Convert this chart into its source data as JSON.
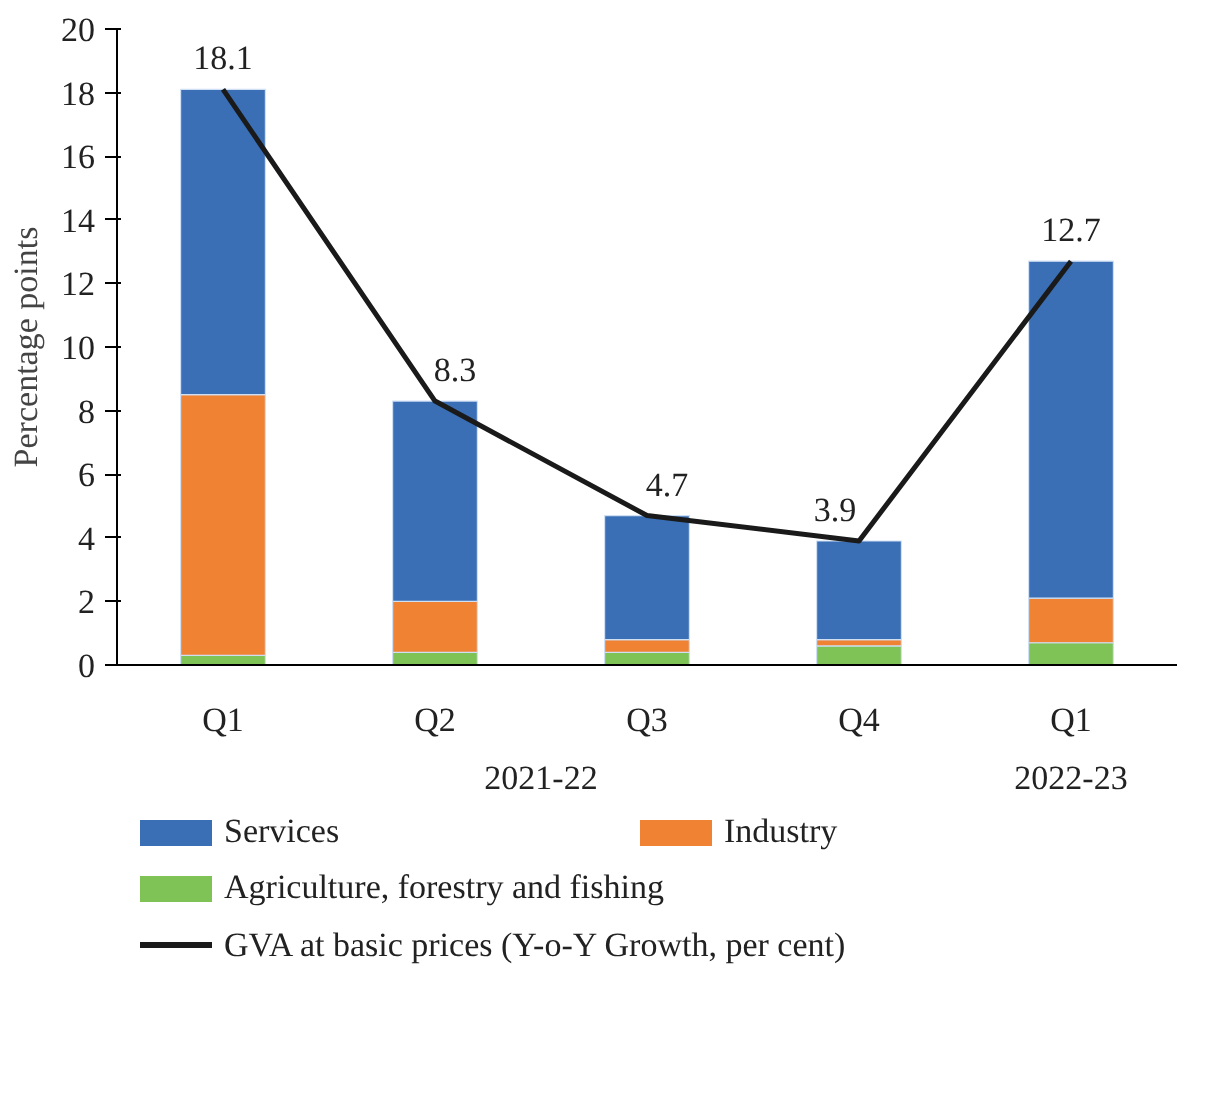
{
  "chart_data": {
    "type": "bar",
    "stacked": true,
    "ylabel": "Percentage points",
    "categories": [
      "Q1",
      "Q2",
      "Q3",
      "Q4",
      "Q1"
    ],
    "annotations": [
      "2021-22",
      "2022-23"
    ],
    "series": [
      {
        "name": "Agriculture, forestry and fishing",
        "color": "#7fc256",
        "values": [
          0.3,
          0.4,
          0.4,
          0.6,
          0.7
        ]
      },
      {
        "name": "Industry",
        "color": "#f08234",
        "values": [
          8.2,
          1.6,
          0.4,
          0.2,
          1.4
        ]
      },
      {
        "name": "Services",
        "color": "#3a6fb5",
        "values": [
          9.6,
          6.3,
          3.9,
          3.1,
          10.6
        ]
      },
      {
        "name": "GVA at basic prices (Y-o-Y Growth, per cent)",
        "type": "line",
        "color": "#1a1a1a",
        "values": [
          18.1,
          8.3,
          4.7,
          3.9,
          12.7
        ],
        "value_labels": [
          "18.1",
          "8.3",
          "4.7",
          "3.9",
          "12.7"
        ]
      }
    ],
    "ylim": [
      0,
      20
    ],
    "yticks": [
      0,
      2,
      4,
      6,
      8,
      10,
      12,
      14,
      16,
      18,
      20
    ],
    "grid": false,
    "legend": "bottom"
  }
}
